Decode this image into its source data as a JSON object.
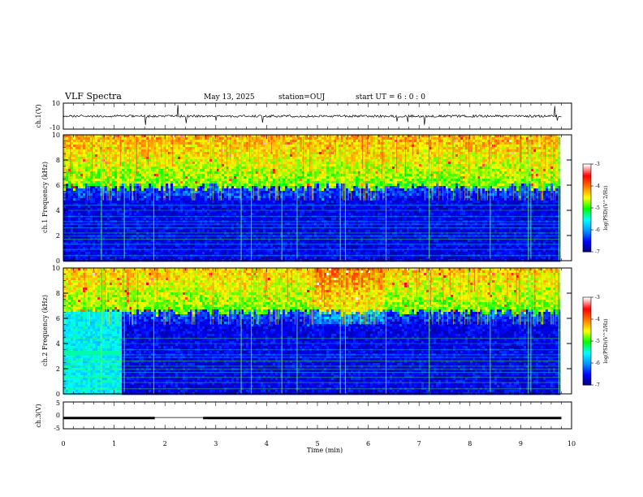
{
  "header": {
    "title": "VLF Spectra",
    "date": "May 13, 2025",
    "station": "station=OUJ",
    "start_ut": "start UT =  6 : 0 : 0"
  },
  "colors": {
    "spectrogram_scale": [
      "#00006e",
      "#0000ff",
      "#0096ff",
      "#00ffff",
      "#00ff00",
      "#ffff00",
      "#ff7800",
      "#ff0000",
      "#ffffff"
    ],
    "trace": "#000000"
  },
  "chart_data": [
    {
      "type": "line",
      "name": "ch1-waveform",
      "ylabel": "ch.1(V)",
      "ylim": [
        -10,
        10
      ],
      "yticks": [
        10,
        -10
      ],
      "x_range": [
        0,
        9.8
      ],
      "baseline": 0,
      "notes": "noise trace near 0 V with sporadic negative spikes"
    },
    {
      "type": "heatmap",
      "name": "ch1-spectrogram",
      "ylabel": "ch.1 Frequency (kHz)",
      "ylim": [
        0,
        10
      ],
      "yticks": [
        0,
        2,
        4,
        6,
        8,
        10
      ],
      "x_range": [
        0,
        9.8
      ],
      "low_band_top_khz": 5.8,
      "colorbar": {
        "label": "log(PSD)(V^2/Hz)",
        "range": [
          -7,
          -3
        ],
        "ticks": [
          -3,
          -4,
          -5,
          -6,
          -7
        ]
      }
    },
    {
      "type": "heatmap",
      "name": "ch2-spectrogram",
      "ylabel": "ch.2 Frequency (kHz)",
      "ylim": [
        0,
        10
      ],
      "yticks": [
        0,
        2,
        4,
        6,
        8,
        10
      ],
      "x_range": [
        0,
        9.8
      ],
      "low_band_top_khz": 6.5,
      "colorbar": {
        "label": "log(PSD)(V^2/Hz)",
        "range": [
          -7,
          -3
        ],
        "ticks": [
          -3,
          -4,
          -5,
          -6,
          -7
        ]
      }
    },
    {
      "type": "line",
      "name": "ch3-level",
      "ylabel": "ch.3(V)",
      "ylim": [
        -5,
        5
      ],
      "yticks": [
        5,
        0,
        -5
      ],
      "x_range": [
        0,
        9.8
      ],
      "value_v": -1,
      "gap_min": [
        1.8,
        2.75
      ]
    }
  ],
  "xaxis": {
    "label": "Time (min)",
    "range": [
      0,
      10
    ],
    "ticks": [
      0,
      1,
      2,
      3,
      4,
      5,
      6,
      7,
      8,
      9,
      10
    ]
  }
}
